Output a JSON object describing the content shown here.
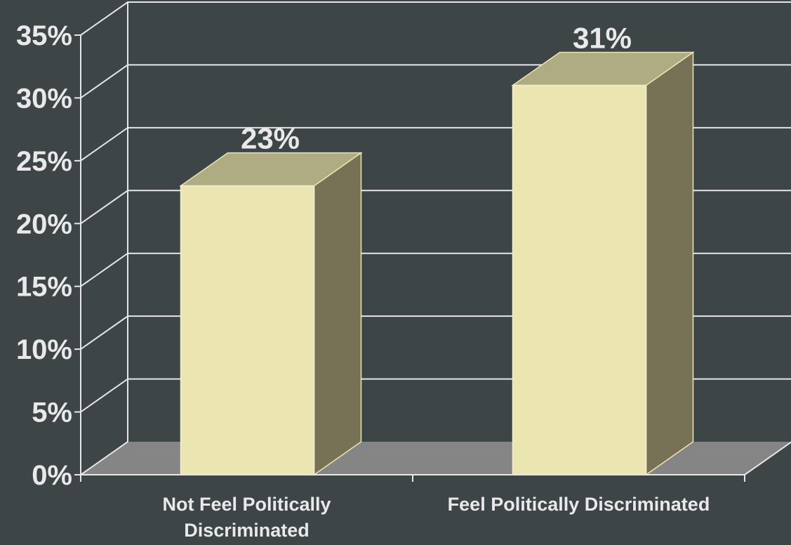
{
  "chart_data": {
    "type": "bar",
    "categories": [
      "Not Feel Politically Discriminated",
      "Feel Politically Discriminated"
    ],
    "category_lines": [
      [
        "Not Feel Politically",
        "Discriminated"
      ],
      [
        "Feel Politically Discriminated"
      ]
    ],
    "values": [
      23,
      31
    ],
    "data_labels": [
      "23%",
      "31%"
    ],
    "y_ticks": [
      {
        "value": 0,
        "label": "0%"
      },
      {
        "value": 5,
        "label": "5%"
      },
      {
        "value": 10,
        "label": "10%"
      },
      {
        "value": 15,
        "label": "15%"
      },
      {
        "value": 20,
        "label": "20%"
      },
      {
        "value": 25,
        "label": "25%"
      },
      {
        "value": 30,
        "label": "30%"
      },
      {
        "value": 35,
        "label": "35%"
      }
    ],
    "ylim": [
      0,
      35
    ],
    "title": "",
    "xlabel": "",
    "ylabel": "",
    "grid": true,
    "style": "3d-bar",
    "colors": {
      "background": "#3e4546",
      "bar_front": "#ebe5b2",
      "bar_top": "#afac84",
      "bar_side": "#777156",
      "floor": "#858585",
      "grid": "#e6e6e6",
      "text": "#e9e9e9"
    }
  }
}
